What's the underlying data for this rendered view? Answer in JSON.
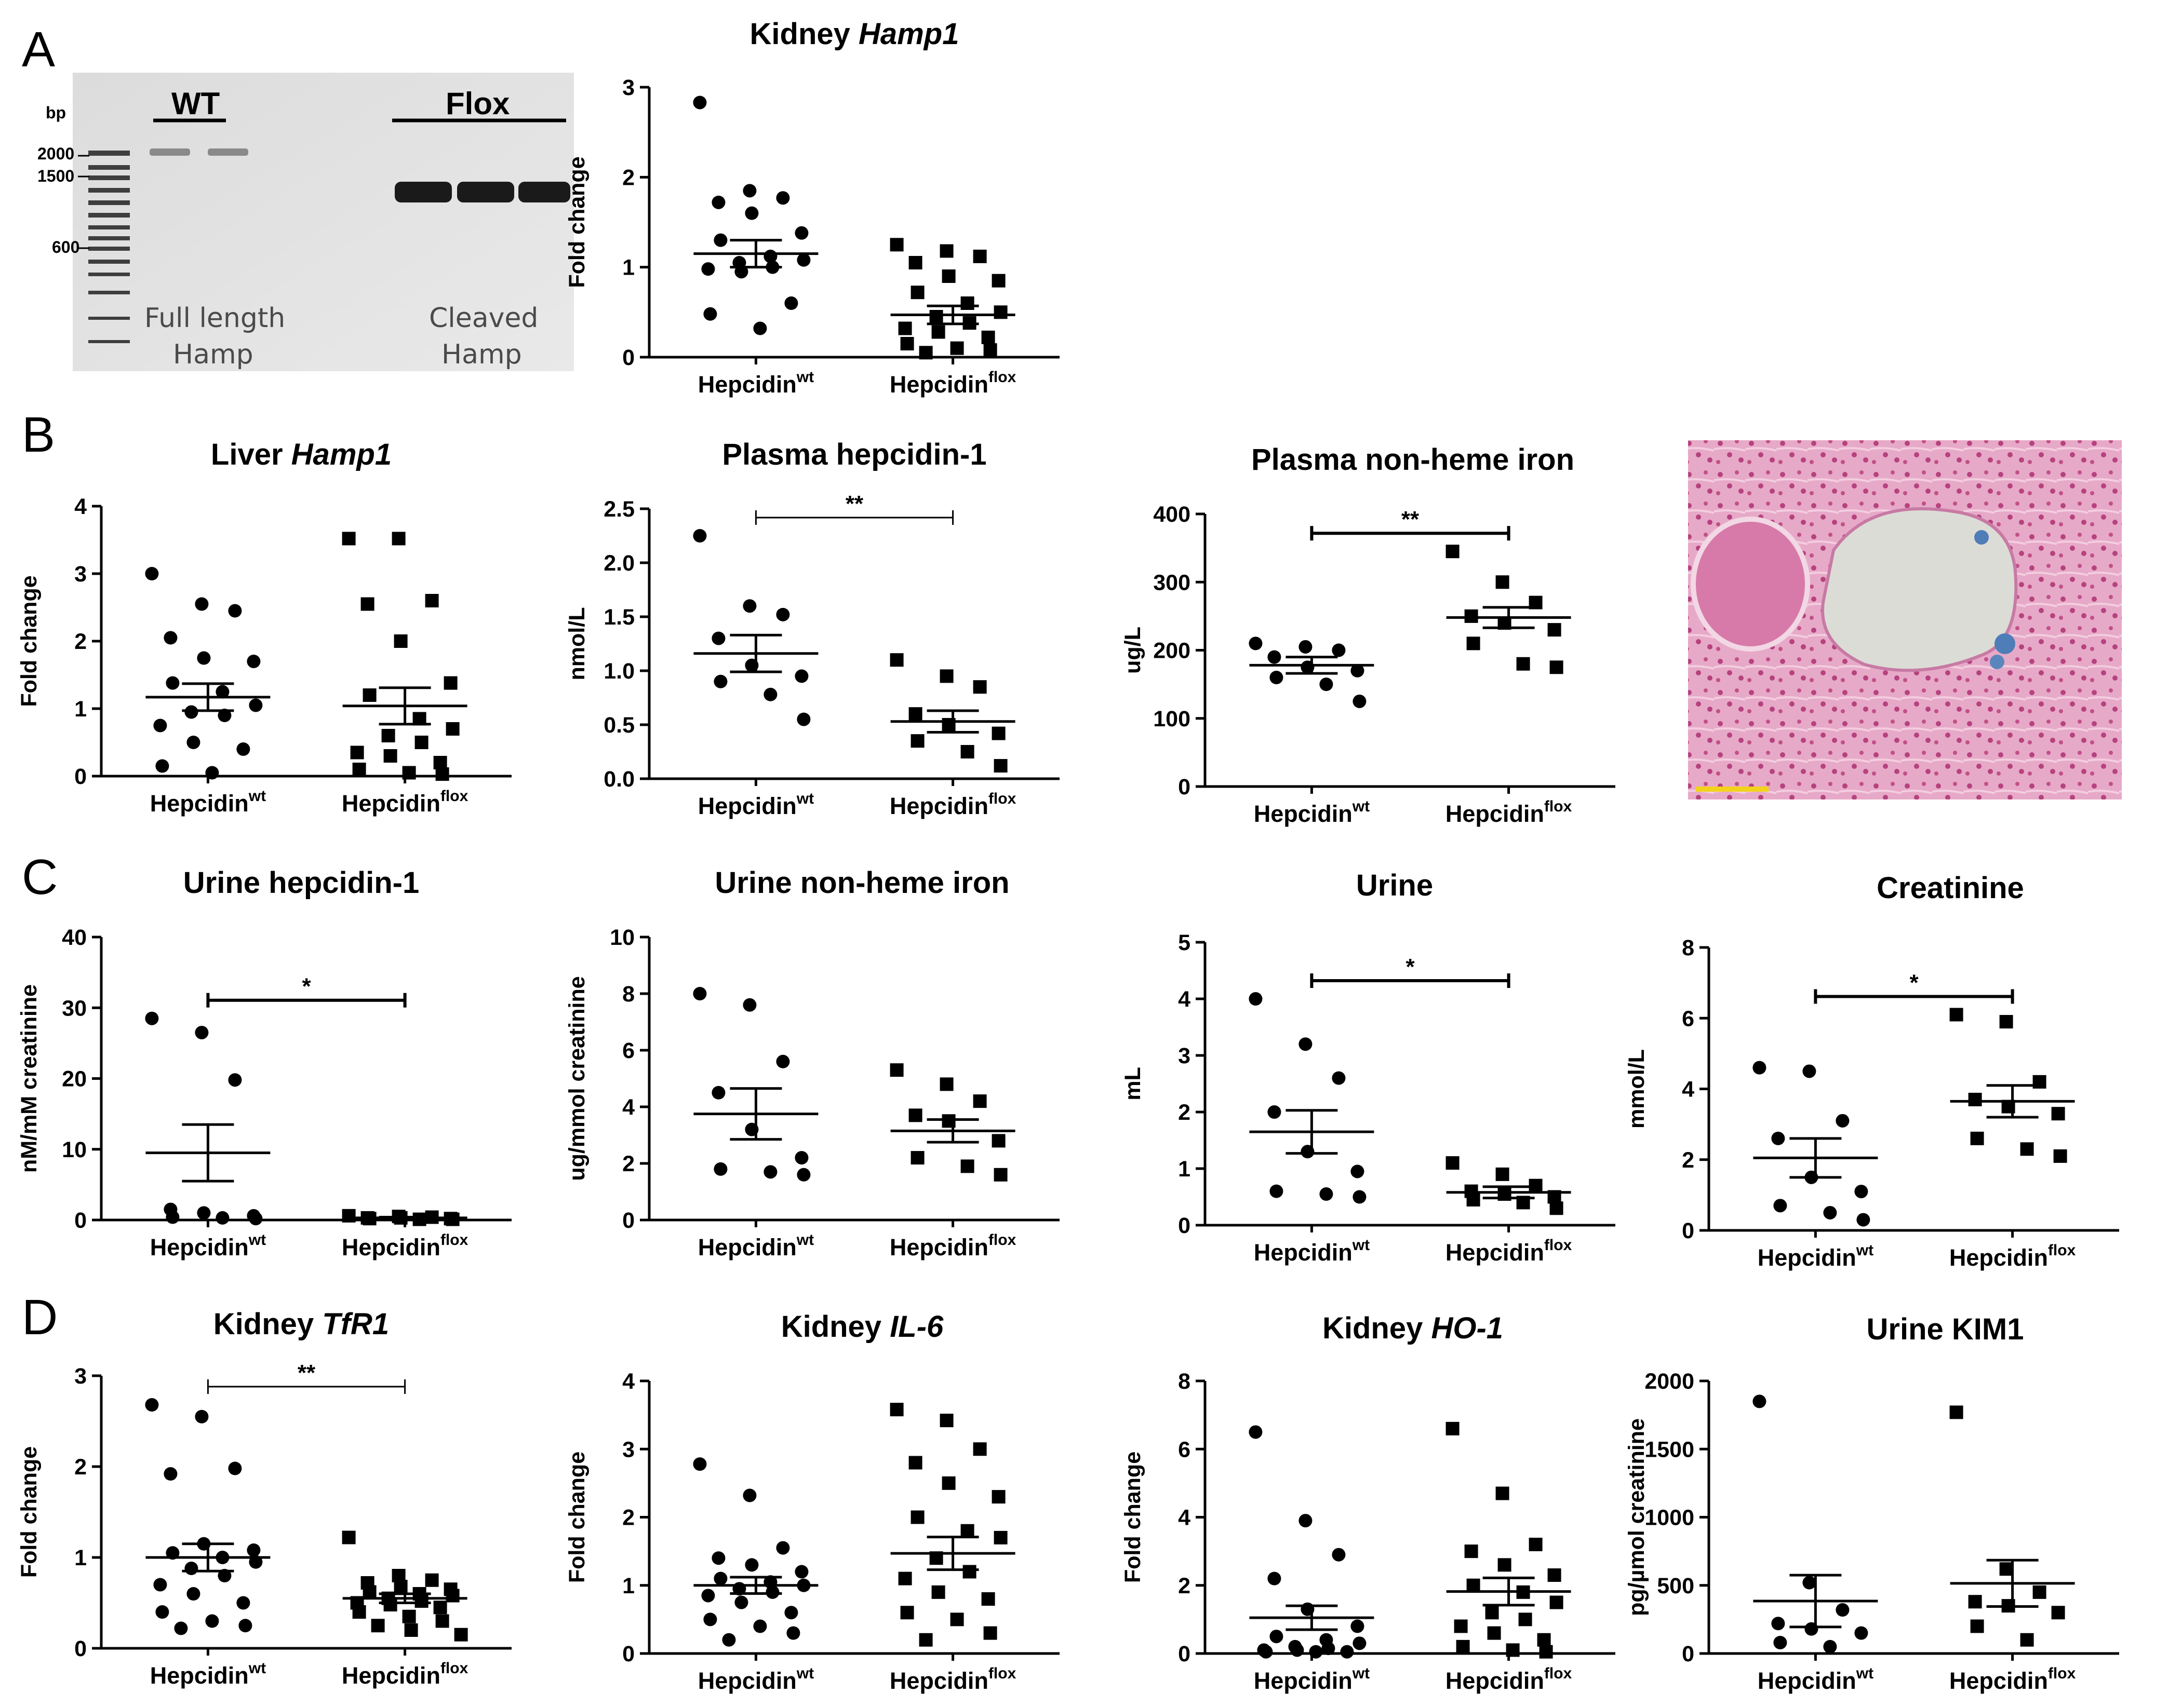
{
  "panels": {
    "A": "A",
    "B": "B",
    "C": "C",
    "D": "D"
  },
  "gel": {
    "bp_label": "bp",
    "ladder": [
      "2000",
      "1500",
      "600"
    ],
    "wt_label": "WT",
    "flox_label": "Flox",
    "full_length": "Full length",
    "cleaved": "Cleaved",
    "hamp": "Hamp"
  },
  "histology": {
    "scale_bar_color": "#f2d21b",
    "stain": "pink-tissue-with-blue-iron-deposits"
  },
  "groups": {
    "wt_base": "Hepcidin",
    "wt_sup": "wt",
    "flox_base": "Hepcidin",
    "flox_sup": "flox"
  },
  "chart_data": [
    {
      "id": "kidney-hamp1",
      "type": "scatter",
      "title_plain": "Kidney ",
      "title_ital": "Hamp1",
      "ylabel": "Fold change",
      "ylim": [
        0,
        3
      ],
      "yticks": [
        0,
        1,
        2,
        3
      ],
      "series": [
        {
          "name": "Hepcidin wt",
          "marker": "circle",
          "mean": 1.15,
          "sem": 0.15,
          "values": [
            2.83,
            1.85,
            1.77,
            1.72,
            1.6,
            1.38,
            1.3,
            1.12,
            1.08,
            1.05,
            1.0,
            0.98,
            0.95,
            0.6,
            0.48,
            0.32
          ]
        },
        {
          "name": "Hepcidin flox",
          "marker": "square",
          "mean": 0.47,
          "sem": 0.1,
          "values": [
            1.25,
            1.18,
            1.12,
            1.05,
            0.9,
            0.85,
            0.72,
            0.6,
            0.5,
            0.45,
            0.38,
            0.32,
            0.28,
            0.22,
            0.15,
            0.1,
            0.08,
            0.05
          ]
        }
      ]
    },
    {
      "id": "liver-hamp1",
      "type": "scatter",
      "title_plain": "Liver ",
      "title_ital": "Hamp1",
      "ylabel": "Fold change",
      "ylim": [
        0,
        4
      ],
      "yticks": [
        0,
        1,
        2,
        3,
        4
      ],
      "series": [
        {
          "name": "Hepcidin wt",
          "marker": "circle",
          "mean": 1.17,
          "sem": 0.2,
          "values": [
            3.0,
            2.55,
            2.45,
            2.05,
            1.75,
            1.7,
            1.38,
            1.25,
            1.05,
            0.95,
            0.9,
            0.75,
            0.5,
            0.4,
            0.15,
            0.05
          ]
        },
        {
          "name": "Hepcidin flox",
          "marker": "square",
          "mean": 1.04,
          "sem": 0.27,
          "values": [
            3.52,
            3.52,
            2.6,
            2.55,
            2.0,
            1.38,
            1.2,
            0.85,
            0.7,
            0.6,
            0.5,
            0.35,
            0.3,
            0.2,
            0.1,
            0.05,
            0.03
          ]
        }
      ]
    },
    {
      "id": "plasma-hepcidin",
      "type": "scatter",
      "title_plain": "Plasma hepcidin-1",
      "title_ital": "",
      "ylabel": "nmol/L",
      "ylim": [
        0,
        2.5
      ],
      "yticks": [
        0,
        0.5,
        1,
        1.5,
        2,
        2.5
      ],
      "ytick_labels": [
        "0.0",
        "0.5",
        "1.0",
        "1.5",
        "2.0",
        "2.5"
      ],
      "significance": {
        "label": "**",
        "style": "thin"
      },
      "series": [
        {
          "name": "Hepcidin wt",
          "marker": "circle",
          "mean": 1.16,
          "sem": 0.17,
          "values": [
            2.25,
            1.6,
            1.52,
            1.3,
            1.05,
            0.95,
            0.9,
            0.78,
            0.55
          ]
        },
        {
          "name": "Hepcidin flox",
          "marker": "square",
          "mean": 0.53,
          "sem": 0.1,
          "values": [
            1.1,
            0.95,
            0.85,
            0.6,
            0.5,
            0.42,
            0.35,
            0.25,
            0.12
          ]
        }
      ]
    },
    {
      "id": "plasma-iron",
      "type": "scatter",
      "title_plain": "Plasma non-heme iron",
      "title_ital": "",
      "ylabel": "ug/L",
      "ylim": [
        0,
        400
      ],
      "yticks": [
        0,
        100,
        200,
        300,
        400
      ],
      "significance": {
        "label": "**",
        "style": "thick"
      },
      "series": [
        {
          "name": "Hepcidin wt",
          "marker": "circle",
          "mean": 178,
          "sem": 12,
          "values": [
            210,
            205,
            200,
            190,
            175,
            170,
            160,
            150,
            125
          ]
        },
        {
          "name": "Hepcidin flox",
          "marker": "square",
          "mean": 248,
          "sem": 15,
          "values": [
            345,
            300,
            270,
            250,
            240,
            230,
            210,
            180,
            175
          ]
        }
      ]
    },
    {
      "id": "urine-hepcidin",
      "type": "scatter",
      "title_plain": "Urine hepcidin-1",
      "title_ital": "",
      "ylabel": "nM/mM creatinine",
      "ylim": [
        0,
        40
      ],
      "yticks": [
        0,
        10,
        20,
        30,
        40
      ],
      "significance": {
        "label": "*",
        "style": "thick"
      },
      "series": [
        {
          "name": "Hepcidin wt",
          "marker": "circle",
          "mean": 9.5,
          "sem": 4.0,
          "values": [
            28.5,
            26.5,
            19.8,
            1.5,
            1.0,
            0.6,
            0.4,
            0.3,
            0.2
          ]
        },
        {
          "name": "Hepcidin flox",
          "marker": "square",
          "mean": 0.3,
          "sem": 0.1,
          "values": [
            0.6,
            0.5,
            0.4,
            0.3,
            0.3,
            0.2,
            0.2,
            0.1,
            0.1
          ]
        }
      ]
    },
    {
      "id": "urine-iron",
      "type": "scatter",
      "title_plain": "Urine non-heme iron",
      "title_ital": "",
      "ylabel": "ug/mmol creatinine",
      "ylim": [
        0,
        10
      ],
      "yticks": [
        0,
        2,
        4,
        6,
        8,
        10
      ],
      "series": [
        {
          "name": "Hepcidin wt",
          "marker": "circle",
          "mean": 3.75,
          "sem": 0.9,
          "values": [
            8.0,
            7.6,
            5.6,
            4.5,
            3.2,
            2.2,
            1.8,
            1.7,
            1.6
          ]
        },
        {
          "name": "Hepcidin flox",
          "marker": "square",
          "mean": 3.15,
          "sem": 0.4,
          "values": [
            5.3,
            4.8,
            4.2,
            3.7,
            3.5,
            2.8,
            2.2,
            1.9,
            1.6
          ]
        }
      ]
    },
    {
      "id": "urine-volume",
      "type": "scatter",
      "title_plain": "Urine",
      "title_ital": "",
      "ylabel": "mL",
      "ylim": [
        0,
        5
      ],
      "yticks": [
        0,
        1,
        2,
        3,
        4,
        5
      ],
      "significance": {
        "label": "*",
        "style": "thick"
      },
      "series": [
        {
          "name": "Hepcidin wt",
          "marker": "circle",
          "mean": 1.65,
          "sem": 0.38,
          "values": [
            4.0,
            3.2,
            2.6,
            2.0,
            1.3,
            0.95,
            0.6,
            0.55,
            0.5
          ]
        },
        {
          "name": "Hepcidin flox",
          "marker": "square",
          "mean": 0.58,
          "sem": 0.1,
          "values": [
            1.1,
            0.9,
            0.7,
            0.6,
            0.55,
            0.5,
            0.45,
            0.4,
            0.3
          ]
        }
      ]
    },
    {
      "id": "creatinine",
      "type": "scatter",
      "title_plain": "Creatinine",
      "title_ital": "",
      "ylabel": "mmol/L",
      "ylim": [
        0,
        8
      ],
      "yticks": [
        0,
        2,
        4,
        6,
        8
      ],
      "significance": {
        "label": "*",
        "style": "thick"
      },
      "series": [
        {
          "name": "Hepcidin wt",
          "marker": "circle",
          "mean": 2.05,
          "sem": 0.55,
          "values": [
            4.6,
            4.5,
            3.1,
            2.6,
            1.5,
            1.1,
            0.7,
            0.5,
            0.3
          ]
        },
        {
          "name": "Hepcidin flox",
          "marker": "square",
          "mean": 3.65,
          "sem": 0.45,
          "values": [
            6.1,
            5.9,
            4.2,
            3.7,
            3.5,
            3.3,
            2.6,
            2.3,
            2.1
          ]
        }
      ]
    },
    {
      "id": "kidney-tfr1",
      "type": "scatter",
      "title_plain": "Kidney ",
      "title_ital": "TfR1",
      "ylabel": "Fold change",
      "ylim": [
        0,
        3
      ],
      "yticks": [
        0,
        1,
        2,
        3
      ],
      "significance": {
        "label": "**",
        "style": "thin"
      },
      "series": [
        {
          "name": "Hepcidin wt",
          "marker": "circle",
          "mean": 1.0,
          "sem": 0.15,
          "values": [
            2.68,
            2.55,
            1.98,
            1.92,
            1.15,
            1.08,
            1.05,
            1.0,
            0.95,
            0.88,
            0.8,
            0.7,
            0.6,
            0.5,
            0.4,
            0.3,
            0.25,
            0.22
          ]
        },
        {
          "name": "Hepcidin flox",
          "marker": "square",
          "mean": 0.55,
          "sem": 0.05,
          "values": [
            1.22,
            0.8,
            0.75,
            0.72,
            0.68,
            0.65,
            0.62,
            0.6,
            0.58,
            0.55,
            0.52,
            0.5,
            0.48,
            0.45,
            0.4,
            0.35,
            0.3,
            0.25,
            0.2,
            0.15
          ]
        }
      ]
    },
    {
      "id": "kidney-il6",
      "type": "scatter",
      "title_plain": "Kidney ",
      "title_ital": "IL-6",
      "ylabel": "Fold change",
      "ylim": [
        0,
        4
      ],
      "yticks": [
        0,
        1,
        2,
        3,
        4
      ],
      "series": [
        {
          "name": "Hepcidin wt",
          "marker": "circle",
          "mean": 1.0,
          "sem": 0.12,
          "values": [
            2.78,
            2.32,
            1.55,
            1.4,
            1.3,
            1.2,
            1.1,
            1.05,
            1.0,
            0.95,
            0.9,
            0.85,
            0.75,
            0.6,
            0.5,
            0.4,
            0.3,
            0.2
          ]
        },
        {
          "name": "Hepcidin flox",
          "marker": "square",
          "mean": 1.47,
          "sem": 0.24,
          "values": [
            3.58,
            3.42,
            3.0,
            2.8,
            2.5,
            2.3,
            2.0,
            1.8,
            1.7,
            1.4,
            1.2,
            1.1,
            0.9,
            0.8,
            0.6,
            0.5,
            0.3,
            0.2
          ]
        }
      ]
    },
    {
      "id": "kidney-ho1",
      "type": "scatter",
      "title_plain": "Kidney ",
      "title_ital": "HO-1",
      "ylabel": "Fold change",
      "ylim": [
        0,
        8
      ],
      "yticks": [
        0,
        2,
        4,
        6,
        8
      ],
      "series": [
        {
          "name": "Hepcidin wt",
          "marker": "circle",
          "mean": 1.05,
          "sem": 0.35,
          "values": [
            6.5,
            3.9,
            2.9,
            2.2,
            1.3,
            0.8,
            0.5,
            0.4,
            0.3,
            0.2,
            0.15,
            0.1,
            0.1,
            0.05,
            0.05,
            0.05
          ]
        },
        {
          "name": "Hepcidin flox",
          "marker": "square",
          "mean": 1.82,
          "sem": 0.4,
          "values": [
            6.6,
            4.7,
            3.2,
            3.0,
            2.6,
            2.3,
            2.0,
            1.8,
            1.5,
            1.2,
            1.0,
            0.8,
            0.6,
            0.4,
            0.2,
            0.1,
            0.05
          ]
        }
      ]
    },
    {
      "id": "urine-kim1",
      "type": "scatter",
      "title_plain": "Urine KIM1",
      "title_ital": "",
      "ylabel": "pg/µmol creatinine",
      "ylim": [
        0,
        2000
      ],
      "yticks": [
        0,
        500,
        1000,
        1500,
        2000
      ],
      "series": [
        {
          "name": "Hepcidin wt",
          "marker": "circle",
          "mean": 385,
          "sem": 190,
          "values": [
            1850,
            520,
            320,
            220,
            180,
            150,
            80,
            50
          ]
        },
        {
          "name": "Hepcidin flox",
          "marker": "square",
          "mean": 515,
          "sem": 170,
          "values": [
            1770,
            620,
            450,
            380,
            350,
            300,
            200,
            100
          ]
        }
      ]
    }
  ]
}
